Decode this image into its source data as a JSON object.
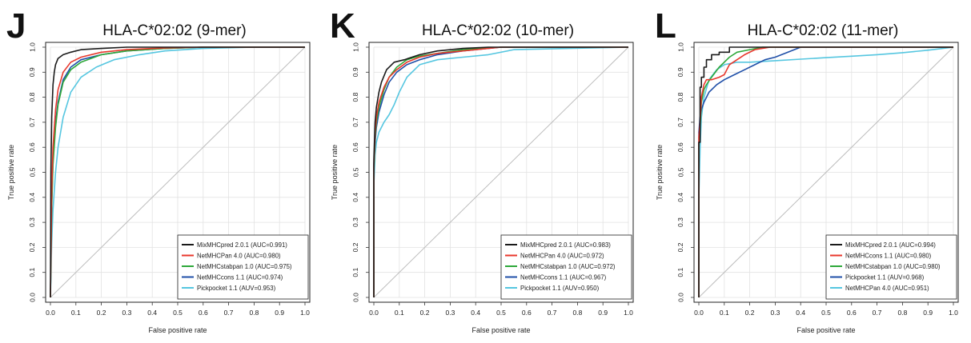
{
  "chart_data": [
    {
      "type": "line",
      "panel_letter": "J",
      "title": "HLA-C*02:02 (9-mer)",
      "xlabel": "False positive rate",
      "ylabel": "True positive rate",
      "xlim": [
        0,
        1
      ],
      "ylim": [
        0,
        1
      ],
      "xticks": [
        "0.0",
        "0.1",
        "0.2",
        "0.3",
        "0.4",
        "0.5",
        "0.6",
        "0.7",
        "0.8",
        "0.9",
        "1.0"
      ],
      "yticks": [
        "0.0",
        "0.1",
        "0.2",
        "0.3",
        "0.4",
        "0.5",
        "0.6",
        "0.7",
        "0.8",
        "0.9",
        "1.0"
      ],
      "grid": true,
      "diagonal": true,
      "legend_position": "bottom-right",
      "series": [
        {
          "name": "MixMHCpred 2.0.1 (AUC=0.991)",
          "color": "#1a1a1a",
          "x": [
            0,
            0.002,
            0.005,
            0.01,
            0.015,
            0.02,
            0.03,
            0.05,
            0.08,
            0.12,
            0.2,
            0.3,
            0.5,
            1.0
          ],
          "y": [
            0,
            0.5,
            0.72,
            0.85,
            0.9,
            0.93,
            0.955,
            0.97,
            0.98,
            0.99,
            0.995,
            1.0,
            1.0,
            1.0
          ]
        },
        {
          "name": "NetMHCPan 4.0 (AUC=0.980)",
          "color": "#e8372c",
          "x": [
            0,
            0.005,
            0.01,
            0.02,
            0.03,
            0.05,
            0.08,
            0.12,
            0.2,
            0.3,
            0.45,
            0.6,
            1.0
          ],
          "y": [
            0,
            0.42,
            0.6,
            0.75,
            0.83,
            0.9,
            0.94,
            0.96,
            0.98,
            0.99,
            0.997,
            1.0,
            1.0
          ]
        },
        {
          "name": "NetMHCstabpan 1.0 (AUC=0.975)",
          "color": "#2ea83a",
          "x": [
            0,
            0.005,
            0.01,
            0.02,
            0.03,
            0.05,
            0.08,
            0.12,
            0.2,
            0.3,
            0.45,
            0.6,
            1.0
          ],
          "y": [
            0,
            0.36,
            0.53,
            0.68,
            0.77,
            0.86,
            0.91,
            0.94,
            0.97,
            0.985,
            0.995,
            1.0,
            1.0
          ]
        },
        {
          "name": "NetMHCcons 1.1 (AUC=0.974)",
          "color": "#1f4fa8",
          "x": [
            0,
            0.005,
            0.01,
            0.02,
            0.03,
            0.05,
            0.08,
            0.12,
            0.2,
            0.3,
            0.45,
            0.6,
            1.0
          ],
          "y": [
            0,
            0.38,
            0.55,
            0.7,
            0.78,
            0.87,
            0.92,
            0.95,
            0.97,
            0.985,
            0.995,
            1.0,
            1.0
          ]
        },
        {
          "name": "Pickpocket 1.1 (AUV=0.953)",
          "color": "#55c6e0",
          "x": [
            0,
            0.005,
            0.01,
            0.02,
            0.03,
            0.05,
            0.08,
            0.12,
            0.18,
            0.25,
            0.35,
            0.45,
            0.6,
            0.8,
            1.0
          ],
          "y": [
            0,
            0.22,
            0.35,
            0.5,
            0.6,
            0.72,
            0.82,
            0.88,
            0.92,
            0.95,
            0.97,
            0.985,
            0.995,
            1.0,
            1.0
          ]
        }
      ]
    },
    {
      "type": "line",
      "panel_letter": "K",
      "title": "HLA-C*02:02 (10-mer)",
      "xlabel": "False positive rate",
      "ylabel": "True positive rate",
      "xlim": [
        0,
        1
      ],
      "ylim": [
        0,
        1
      ],
      "xticks": [
        "0.0",
        "0.1",
        "0.2",
        "0.3",
        "0.4",
        "0.5",
        "0.6",
        "0.7",
        "0.8",
        "0.9",
        "1.0"
      ],
      "yticks": [
        "0.0",
        "0.1",
        "0.2",
        "0.3",
        "0.4",
        "0.5",
        "0.6",
        "0.7",
        "0.8",
        "0.9",
        "1.0"
      ],
      "grid": true,
      "diagonal": true,
      "legend_position": "bottom-right",
      "series": [
        {
          "name": "MixMHCpred 2.0.1 (AUC=0.983)",
          "color": "#1a1a1a",
          "x": [
            0,
            0.0,
            0.005,
            0.01,
            0.02,
            0.03,
            0.05,
            0.08,
            0.12,
            0.18,
            0.25,
            0.35,
            0.45,
            1.0
          ],
          "y": [
            0,
            0.55,
            0.7,
            0.76,
            0.82,
            0.86,
            0.91,
            0.94,
            0.95,
            0.97,
            0.985,
            0.995,
            1.0,
            1.0
          ]
        },
        {
          "name": "NetMHCPan 4.0 (AUC=0.972)",
          "color": "#e8372c",
          "x": [
            0,
            0.0,
            0.005,
            0.01,
            0.02,
            0.04,
            0.06,
            0.09,
            0.13,
            0.18,
            0.25,
            0.35,
            0.5,
            1.0
          ],
          "y": [
            0,
            0.52,
            0.66,
            0.72,
            0.78,
            0.84,
            0.88,
            0.91,
            0.94,
            0.96,
            0.975,
            0.985,
            1.0,
            1.0
          ]
        },
        {
          "name": "NetMHCstabpan 1.0 (AUC=0.972)",
          "color": "#2ea83a",
          "x": [
            0,
            0.0,
            0.005,
            0.01,
            0.02,
            0.04,
            0.06,
            0.09,
            0.13,
            0.18,
            0.25,
            0.35,
            0.5,
            1.0
          ],
          "y": [
            0,
            0.5,
            0.64,
            0.7,
            0.76,
            0.83,
            0.88,
            0.92,
            0.95,
            0.965,
            0.975,
            0.99,
            1.0,
            1.0
          ]
        },
        {
          "name": "NetMHCcons 1.1 (AUC=0.967)",
          "color": "#1f4fa8",
          "x": [
            0,
            0.0,
            0.005,
            0.01,
            0.02,
            0.04,
            0.06,
            0.09,
            0.13,
            0.18,
            0.25,
            0.35,
            0.5,
            1.0
          ],
          "y": [
            0,
            0.53,
            0.62,
            0.68,
            0.74,
            0.81,
            0.86,
            0.9,
            0.93,
            0.95,
            0.97,
            0.985,
            1.0,
            1.0
          ]
        },
        {
          "name": "Pickpocket 1.1 (AUV=0.950)",
          "color": "#55c6e0",
          "x": [
            0,
            0.0,
            0.005,
            0.01,
            0.02,
            0.04,
            0.06,
            0.08,
            0.1,
            0.13,
            0.18,
            0.25,
            0.35,
            0.45,
            0.55,
            1.0
          ],
          "y": [
            0,
            0.45,
            0.57,
            0.62,
            0.66,
            0.7,
            0.73,
            0.77,
            0.82,
            0.88,
            0.93,
            0.95,
            0.96,
            0.97,
            0.99,
            1.0
          ]
        }
      ]
    },
    {
      "type": "line",
      "panel_letter": "L",
      "title": "HLA-C*02:02 (11-mer)",
      "xlabel": "False positive rate",
      "ylabel": "True positive rate",
      "xlim": [
        0,
        1
      ],
      "ylim": [
        0,
        1
      ],
      "xticks": [
        "0.0",
        "0.1",
        "0.2",
        "0.3",
        "0.4",
        "0.5",
        "0.6",
        "0.7",
        "0.8",
        "0.9",
        "1.0"
      ],
      "yticks": [
        "0.0",
        "0.1",
        "0.2",
        "0.3",
        "0.4",
        "0.5",
        "0.6",
        "0.7",
        "0.8",
        "0.9",
        "1.0"
      ],
      "grid": true,
      "diagonal": true,
      "legend_position": "bottom-right",
      "series": [
        {
          "name": "MixMHCpred 2.0.1 (AUC=0.994)",
          "color": "#1a1a1a",
          "x": [
            0,
            0.0,
            0.005,
            0.005,
            0.01,
            0.01,
            0.02,
            0.02,
            0.03,
            0.03,
            0.05,
            0.05,
            0.08,
            0.08,
            0.12,
            0.12,
            0.2,
            1.0
          ],
          "y": [
            0,
            0.62,
            0.62,
            0.84,
            0.84,
            0.88,
            0.88,
            0.92,
            0.92,
            0.95,
            0.95,
            0.97,
            0.97,
            0.98,
            0.98,
            1.0,
            1.0,
            1.0
          ]
        },
        {
          "name": "NetMHCcons 1.1 (AUC=0.980)",
          "color": "#e8372c",
          "x": [
            0,
            0.0,
            0.005,
            0.01,
            0.02,
            0.03,
            0.05,
            0.08,
            0.1,
            0.12,
            0.15,
            0.18,
            0.22,
            0.28,
            1.0
          ],
          "y": [
            0,
            0.64,
            0.7,
            0.8,
            0.85,
            0.87,
            0.87,
            0.88,
            0.89,
            0.93,
            0.95,
            0.97,
            0.99,
            1.0,
            1.0
          ]
        },
        {
          "name": "NetMHCstabpan 1.0 (AUC=0.980)",
          "color": "#2ea83a",
          "x": [
            0,
            0.0,
            0.005,
            0.01,
            0.02,
            0.03,
            0.05,
            0.08,
            0.1,
            0.12,
            0.15,
            0.2,
            0.25,
            1.0
          ],
          "y": [
            0,
            0.6,
            0.68,
            0.78,
            0.83,
            0.85,
            0.88,
            0.92,
            0.94,
            0.96,
            0.98,
            0.99,
            1.0,
            1.0
          ]
        },
        {
          "name": "Pickpocket 1.1 (AUV=0.968)",
          "color": "#1f4fa8",
          "x": [
            0,
            0.0,
            0.005,
            0.01,
            0.02,
            0.04,
            0.07,
            0.1,
            0.14,
            0.18,
            0.22,
            0.26,
            0.3,
            0.35,
            0.4,
            1.0
          ],
          "y": [
            0,
            0.66,
            0.72,
            0.75,
            0.78,
            0.82,
            0.85,
            0.87,
            0.89,
            0.91,
            0.93,
            0.95,
            0.96,
            0.98,
            1.0,
            1.0
          ]
        },
        {
          "name": "NetMHCPan 4.0 (AUC=0.951)",
          "color": "#55c6e0",
          "x": [
            0,
            0.0,
            0.005,
            0.01,
            0.02,
            0.04,
            0.07,
            0.1,
            0.15,
            0.2,
            0.3,
            0.4,
            0.5,
            0.6,
            0.7,
            0.8,
            0.9,
            1.0
          ],
          "y": [
            0,
            0.4,
            0.6,
            0.72,
            0.8,
            0.87,
            0.91,
            0.93,
            0.94,
            0.94,
            0.946,
            0.952,
            0.958,
            0.964,
            0.97,
            0.978,
            0.988,
            1.0
          ]
        }
      ]
    }
  ],
  "colors": {
    "diagonal": "#bdbdbd",
    "grid": "#e2e2e2",
    "axis": "#333333",
    "frame": "#222222"
  }
}
